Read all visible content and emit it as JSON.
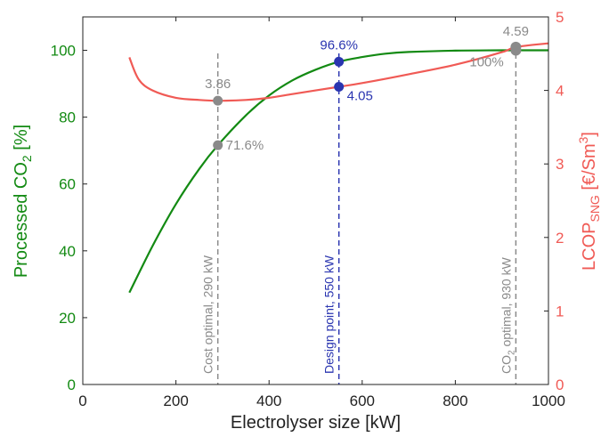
{
  "chart_data": {
    "type": "line",
    "xlabel": "Electrolyser size [kW]",
    "ylabel_left_main": "Processed CO",
    "ylabel_left_sub": "2",
    "ylabel_left_suffix": " [%]",
    "ylabel_right_main": "LCOP",
    "ylabel_right_sub": "SNG",
    "ylabel_right_mid": " [€/Sm",
    "ylabel_right_sup": "3",
    "ylabel_right_end": "]",
    "xlim": [
      0,
      1000
    ],
    "ylim_left": [
      0,
      110
    ],
    "ylim_right": [
      0,
      5
    ],
    "x_ticks": [
      0,
      200,
      400,
      600,
      800,
      1000
    ],
    "y_left_ticks": [
      0,
      20,
      40,
      60,
      80,
      100
    ],
    "y_right_ticks": [
      0,
      1,
      2,
      3,
      4,
      5
    ],
    "grid": false,
    "colors": {
      "processed_co2": "#138a13",
      "lcop": "#f05a55",
      "design": "#2a35b0",
      "markers": "#8a8a8a"
    },
    "series": [
      {
        "axis": "left",
        "x": [
          100,
          150,
          200,
          250,
          290,
          350,
          400,
          450,
          500,
          550,
          600,
          650,
          700,
          800,
          900,
          930,
          1000
        ],
        "values": [
          27.5,
          41.5,
          54,
          64.5,
          71.6,
          80.5,
          86.5,
          91,
          94.2,
          96.6,
          98,
          99,
          99.5,
          99.9,
          100,
          100,
          100
        ]
      },
      {
        "axis": "right",
        "x": [
          100,
          120,
          150,
          200,
          250,
          290,
          350,
          400,
          450,
          500,
          550,
          600,
          700,
          800,
          900,
          930,
          1000
        ],
        "values": [
          4.45,
          4.15,
          4.0,
          3.9,
          3.87,
          3.86,
          3.87,
          3.9,
          3.95,
          4.0,
          4.05,
          4.1,
          4.22,
          4.35,
          4.52,
          4.59,
          4.64
        ]
      }
    ],
    "annotations": [
      {
        "x": 290,
        "axis": "right",
        "y": 3.86,
        "label": "3.86",
        "style": "gray"
      },
      {
        "x": 290,
        "axis": "left",
        "y": 71.6,
        "label": "71.6%",
        "style": "gray"
      },
      {
        "x": 550,
        "axis": "left",
        "y": 96.6,
        "label": "96.6%",
        "style": "blue"
      },
      {
        "x": 550,
        "axis": "right",
        "y": 4.05,
        "label": "4.05",
        "style": "blue"
      },
      {
        "x": 930,
        "axis": "right",
        "y": 4.59,
        "label": "4.59",
        "style": "gray"
      },
      {
        "x": 930,
        "axis": "left",
        "y": 100,
        "label": "100%",
        "style": "gray"
      }
    ],
    "vlines": [
      {
        "x": 290,
        "label": "Cost optimal, 290 kW",
        "style": "gray"
      },
      {
        "x": 550,
        "label": "Design point, 550 kW",
        "style": "blue"
      },
      {
        "x": 930,
        "label_pre": "CO",
        "label_sub": "2",
        "label_post": " optimal, 930 kW",
        "style": "gray"
      }
    ]
  }
}
